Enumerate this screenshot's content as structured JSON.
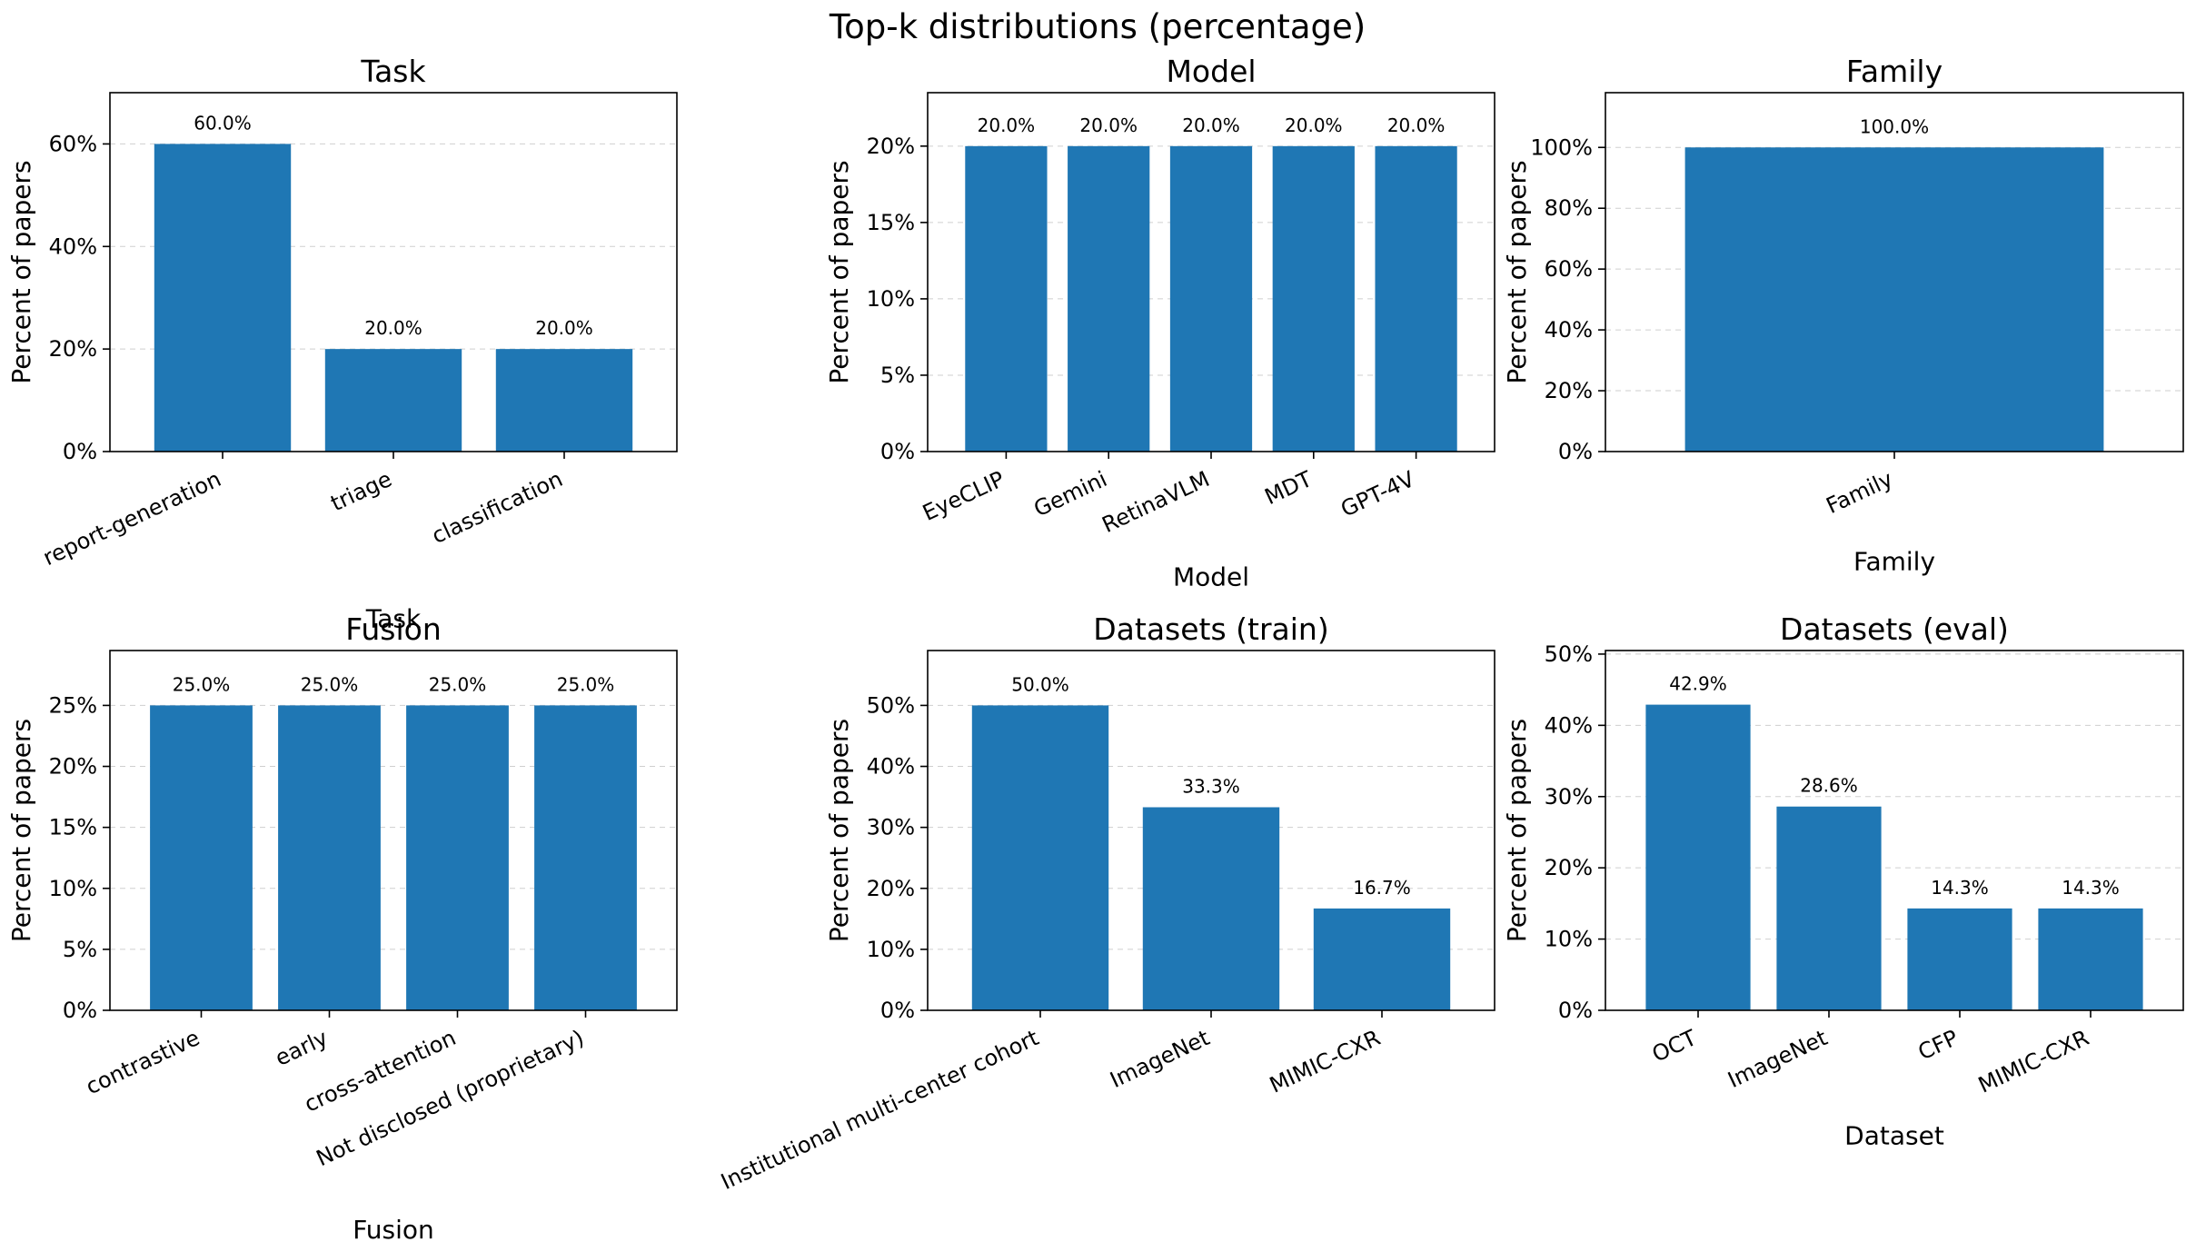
{
  "figure": {
    "suptitle": "Top-k distributions (percentage)"
  },
  "chart_data": [
    {
      "type": "bar",
      "title": "Task",
      "xlabel": "Task",
      "ylabel": "Percent of papers",
      "categories": [
        "report-generation",
        "triage",
        "classification"
      ],
      "values": [
        60.0,
        20.0,
        20.0
      ],
      "value_labels": [
        "60.0%",
        "20.0%",
        "20.0%"
      ],
      "ylim": [
        0,
        70
      ],
      "yticks": [
        0,
        20,
        40,
        60
      ],
      "ytick_labels": [
        "0%",
        "20%",
        "40%",
        "60%"
      ],
      "grid": "y dashed",
      "color": "#1f77b4"
    },
    {
      "type": "bar",
      "title": "Model",
      "xlabel": "Model",
      "ylabel": "Percent of papers",
      "categories": [
        "EyeCLIP",
        "Gemini",
        "RetinaVLM",
        "MDT",
        "GPT-4V"
      ],
      "values": [
        20.0,
        20.0,
        20.0,
        20.0,
        20.0
      ],
      "value_labels": [
        "20.0%",
        "20.0%",
        "20.0%",
        "20.0%",
        "20.0%"
      ],
      "ylim": [
        0,
        23.5
      ],
      "yticks": [
        0,
        5,
        10,
        15,
        20
      ],
      "ytick_labels": [
        "0%",
        "5%",
        "10%",
        "15%",
        "20%"
      ],
      "grid": "y dashed",
      "color": "#1f77b4"
    },
    {
      "type": "bar",
      "title": "Family",
      "xlabel": "Family",
      "ylabel": "Percent of papers",
      "categories": [
        "Family"
      ],
      "values": [
        100.0
      ],
      "value_labels": [
        "100.0%"
      ],
      "ylim": [
        0,
        118
      ],
      "yticks": [
        0,
        20,
        40,
        60,
        80,
        100
      ],
      "ytick_labels": [
        "0%",
        "20%",
        "40%",
        "60%",
        "80%",
        "100%"
      ],
      "grid": "y dashed",
      "color": "#1f77b4"
    },
    {
      "type": "bar",
      "title": "Fusion",
      "xlabel": "Fusion",
      "ylabel": "Percent of papers",
      "categories": [
        "contrastive",
        "early",
        "cross-attention",
        "Not disclosed (proprietary)"
      ],
      "values": [
        25.0,
        25.0,
        25.0,
        25.0
      ],
      "value_labels": [
        "25.0%",
        "25.0%",
        "25.0%",
        "25.0%"
      ],
      "ylim": [
        0,
        29.5
      ],
      "yticks": [
        0,
        5,
        10,
        15,
        20,
        25
      ],
      "ytick_labels": [
        "0%",
        "5%",
        "10%",
        "15%",
        "20%",
        "25%"
      ],
      "grid": "y dashed",
      "color": "#1f77b4"
    },
    {
      "type": "bar",
      "title": "Datasets (train)",
      "xlabel": "Dataset",
      "ylabel": "Percent of papers",
      "categories": [
        "Institutional multi-center cohort",
        "ImageNet",
        "MIMIC-CXR"
      ],
      "values": [
        50.0,
        33.3,
        16.7
      ],
      "value_labels": [
        "50.0%",
        "33.3%",
        "16.7%"
      ],
      "ylim": [
        0,
        59
      ],
      "yticks": [
        0,
        10,
        20,
        30,
        40,
        50
      ],
      "ytick_labels": [
        "0%",
        "10%",
        "20%",
        "30%",
        "40%",
        "50%"
      ],
      "grid": "y dashed",
      "color": "#1f77b4"
    },
    {
      "type": "bar",
      "title": "Datasets (eval)",
      "xlabel": "Dataset",
      "ylabel": "Percent of papers",
      "categories": [
        "OCT",
        "ImageNet",
        "CFP",
        "MIMIC-CXR"
      ],
      "values": [
        42.9,
        28.6,
        14.3,
        14.3
      ],
      "value_labels": [
        "42.9%",
        "28.6%",
        "14.3%",
        "14.3%"
      ],
      "ylim": [
        0,
        50.5
      ],
      "yticks": [
        0,
        10,
        20,
        30,
        40,
        50
      ],
      "ytick_labels": [
        "0%",
        "10%",
        "20%",
        "30%",
        "40%",
        "50%"
      ],
      "grid": "y dashed",
      "color": "#1f77b4"
    }
  ]
}
